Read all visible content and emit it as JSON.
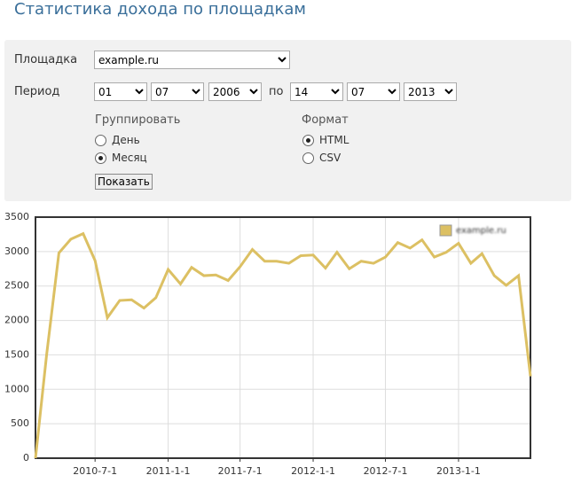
{
  "header": {
    "title": "Статистика дохода по площадкам"
  },
  "form": {
    "site_label": "Площадка",
    "site_value": "example.ru",
    "period_label": "Период",
    "from": [
      "01",
      "07",
      "2006"
    ],
    "to_label": "по",
    "to": [
      "14",
      "07",
      "2013"
    ],
    "group_label": "Группировать",
    "group_options": [
      "День",
      "Месяц"
    ],
    "group_selected": 1,
    "format_label": "Формат",
    "format_options": [
      "HTML",
      "CSV"
    ],
    "format_selected": 0,
    "button": "Показать"
  },
  "chart_data": {
    "type": "line",
    "x": [
      "2010-2-1",
      "2010-3-1",
      "2010-4-1",
      "2010-5-1",
      "2010-6-1",
      "2010-7-1",
      "2010-8-1",
      "2010-9-1",
      "2010-10-1",
      "2010-11-1",
      "2010-12-1",
      "2011-1-1",
      "2011-2-1",
      "2011-3-1",
      "2011-4-1",
      "2011-5-1",
      "2011-6-1",
      "2011-7-1",
      "2011-8-1",
      "2011-9-1",
      "2011-10-1",
      "2011-11-1",
      "2011-12-1",
      "2012-1-1",
      "2012-2-1",
      "2012-3-1",
      "2012-4-1",
      "2012-5-1",
      "2012-6-1",
      "2012-7-1",
      "2012-8-1",
      "2012-9-1",
      "2012-10-1",
      "2012-11-1",
      "2012-12-1",
      "2013-1-1",
      "2013-2-1",
      "2013-3-1",
      "2013-4-1",
      "2013-5-1",
      "2013-6-1",
      "2013-7-1"
    ],
    "series": [
      {
        "name": "example.ru",
        "color": "#dcc063",
        "values": [
          0,
          1500,
          2980,
          3180,
          3260,
          2870,
          2040,
          2290,
          2300,
          2180,
          2330,
          2740,
          2530,
          2770,
          2650,
          2660,
          2580,
          2780,
          3030,
          2860,
          2860,
          2830,
          2940,
          2950,
          2760,
          2990,
          2750,
          2860,
          2830,
          2920,
          3130,
          3050,
          3170,
          2920,
          2990,
          3120,
          2830,
          2970,
          2650,
          2510,
          2650,
          1190
        ]
      }
    ],
    "xlim": [
      "2010-2-1",
      "2013-7-1"
    ],
    "xticks": [
      "2010-7-1",
      "2011-1-1",
      "2011-7-1",
      "2012-1-1",
      "2012-7-1",
      "2013-1-1"
    ],
    "ylim": [
      0,
      3500
    ],
    "yticks": [
      0,
      500,
      1000,
      1500,
      2000,
      2500,
      3000,
      3500
    ],
    "grid": true,
    "legend": "top-right"
  }
}
